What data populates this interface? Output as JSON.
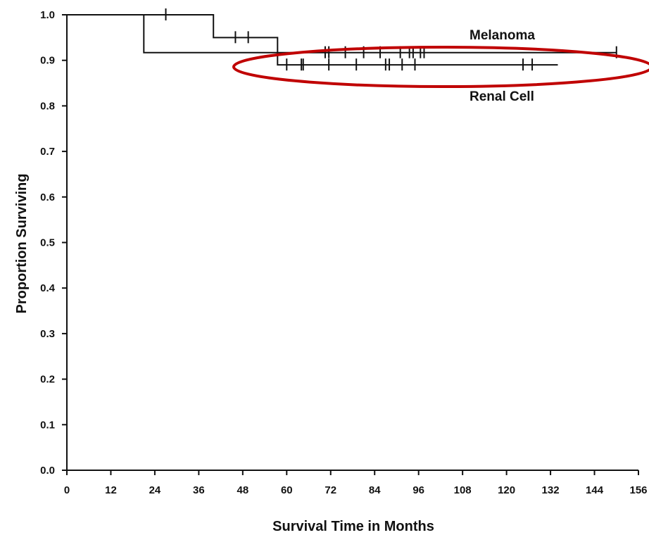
{
  "chart_data": {
    "type": "line",
    "subtype": "kaplan-meier step",
    "title": "",
    "xlabel": "Survival Time in Months",
    "ylabel": "Proportion Surviving",
    "xlim": [
      0,
      156
    ],
    "ylim": [
      0.0,
      1.0
    ],
    "x_ticks": [
      "0",
      "12",
      "24",
      "36",
      "48",
      "60",
      "72",
      "84",
      "96",
      "108",
      "120",
      "132",
      "144",
      "156"
    ],
    "y_ticks": [
      "0.0",
      "0.1",
      "0.2",
      "0.3",
      "0.4",
      "0.5",
      "0.6",
      "0.7",
      "0.8",
      "0.9",
      "1.0"
    ],
    "grid": false,
    "series": [
      {
        "name": "Melanoma",
        "steps": [
          [
            0,
            1.0
          ],
          [
            21,
            0.917
          ],
          [
            150,
            0.917
          ]
        ],
        "censor_times": [
          70.5,
          71.5,
          76,
          81,
          85.5,
          91,
          93.5,
          94.5,
          96.5,
          97.5,
          150
        ]
      },
      {
        "name": "Renal Cell",
        "steps": [
          [
            0,
            1.0
          ],
          [
            40,
            0.95
          ],
          [
            57.5,
            0.89
          ],
          [
            134,
            0.89
          ]
        ],
        "censor_times": [
          27,
          46,
          49.5,
          60,
          64,
          64.5,
          71.5,
          79,
          87,
          88,
          91.5,
          95,
          124.5,
          127
        ]
      }
    ],
    "annotation": {
      "shape": "ellipse",
      "color": "#c00000",
      "marks": "late plateau of both curves"
    }
  }
}
